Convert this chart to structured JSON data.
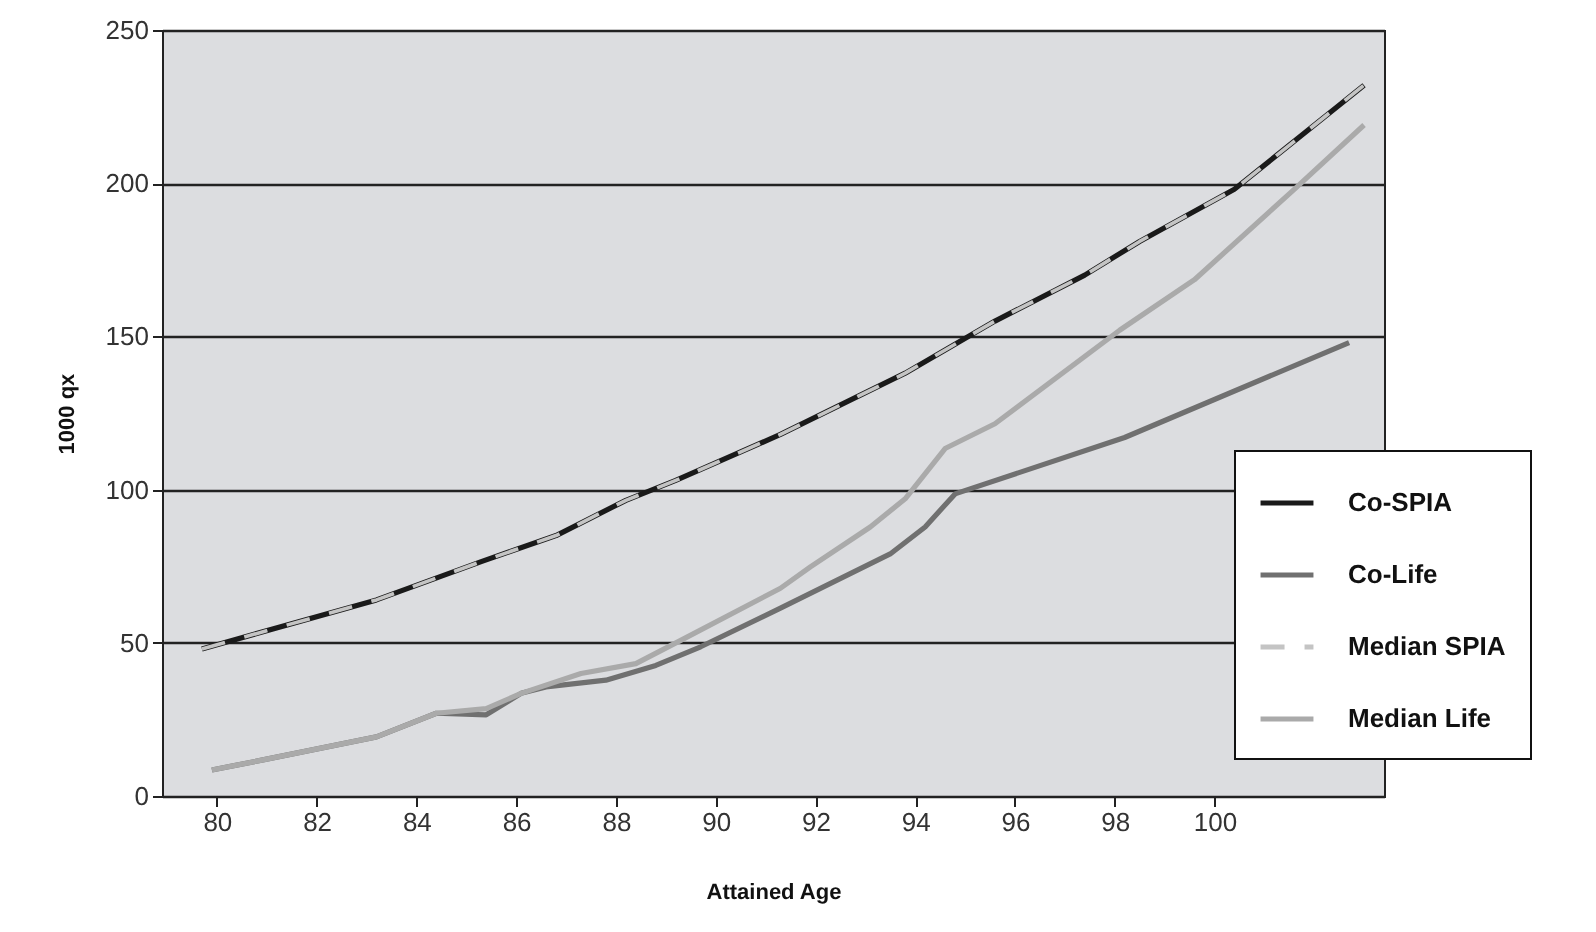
{
  "chart_data": {
    "type": "line",
    "xlabel": "Attained Age",
    "ylabel": "1000 qx",
    "xlim": [
      78.9,
      103.4
    ],
    "xticks": [
      80,
      82,
      84,
      86,
      88,
      90,
      92,
      94,
      96,
      98,
      100
    ],
    "ylim": [
      0,
      250
    ],
    "yticks": [
      0,
      50,
      100,
      150,
      200,
      250
    ],
    "grid": "y",
    "legend": "right",
    "marker": "none",
    "series": [
      {
        "name": "Co-SPIA",
        "color": "#1a1a1a",
        "line_style": "solid",
        "x": [
          79.7,
          83.2,
          85.3,
          86.8,
          88.2,
          89.2,
          91.3,
          93.8,
          95.6,
          97.4,
          98.5,
          100.4,
          103.0
        ],
        "values": [
          48,
          64,
          76.5,
          85,
          96.5,
          103,
          118,
          138,
          155,
          170,
          181,
          198,
          232
        ]
      },
      {
        "name": "Co-Life",
        "color": "#707070",
        "line_style": "solid",
        "x": [
          79.9,
          80.9,
          83.2,
          84.4,
          85.4,
          86.1,
          86.6,
          87.8,
          88.8,
          89.7,
          91.3,
          93.5,
          94.2,
          94.8,
          98.2,
          102.7
        ],
        "values": [
          8.5,
          11.7,
          19.3,
          27,
          26.5,
          33.5,
          35.6,
          37.8,
          42.6,
          48.7,
          61.3,
          79,
          87.8,
          98.6,
          117,
          148
        ]
      },
      {
        "name": "Median SPIA",
        "color": "#c4c4c4",
        "line_style": "dashed",
        "x": [
          79.7,
          83.2,
          85.3,
          86.8,
          88.2,
          89.2,
          91.3,
          93.8,
          95.6,
          97.4,
          98.5,
          100.4,
          103.0
        ],
        "values": [
          48,
          64,
          76.5,
          85,
          96.5,
          103,
          118,
          138,
          155,
          170,
          181,
          198,
          232
        ]
      },
      {
        "name": "Median Life",
        "color": "#aaaaaa",
        "line_style": "solid",
        "x": [
          79.9,
          80.9,
          83.2,
          84.4,
          85.4,
          86.1,
          87.3,
          88.4,
          89.3,
          91.3,
          91.9,
          93.1,
          93.8,
          94.6,
          95.6,
          98.1,
          99.6,
          101.6,
          103.0
        ],
        "values": [
          8.5,
          11.7,
          19.3,
          27,
          28.5,
          33.5,
          40,
          43.2,
          50.8,
          67.8,
          74.8,
          87.8,
          97,
          113.4,
          121.5,
          152,
          168.5,
          198,
          219
        ]
      }
    ]
  }
}
